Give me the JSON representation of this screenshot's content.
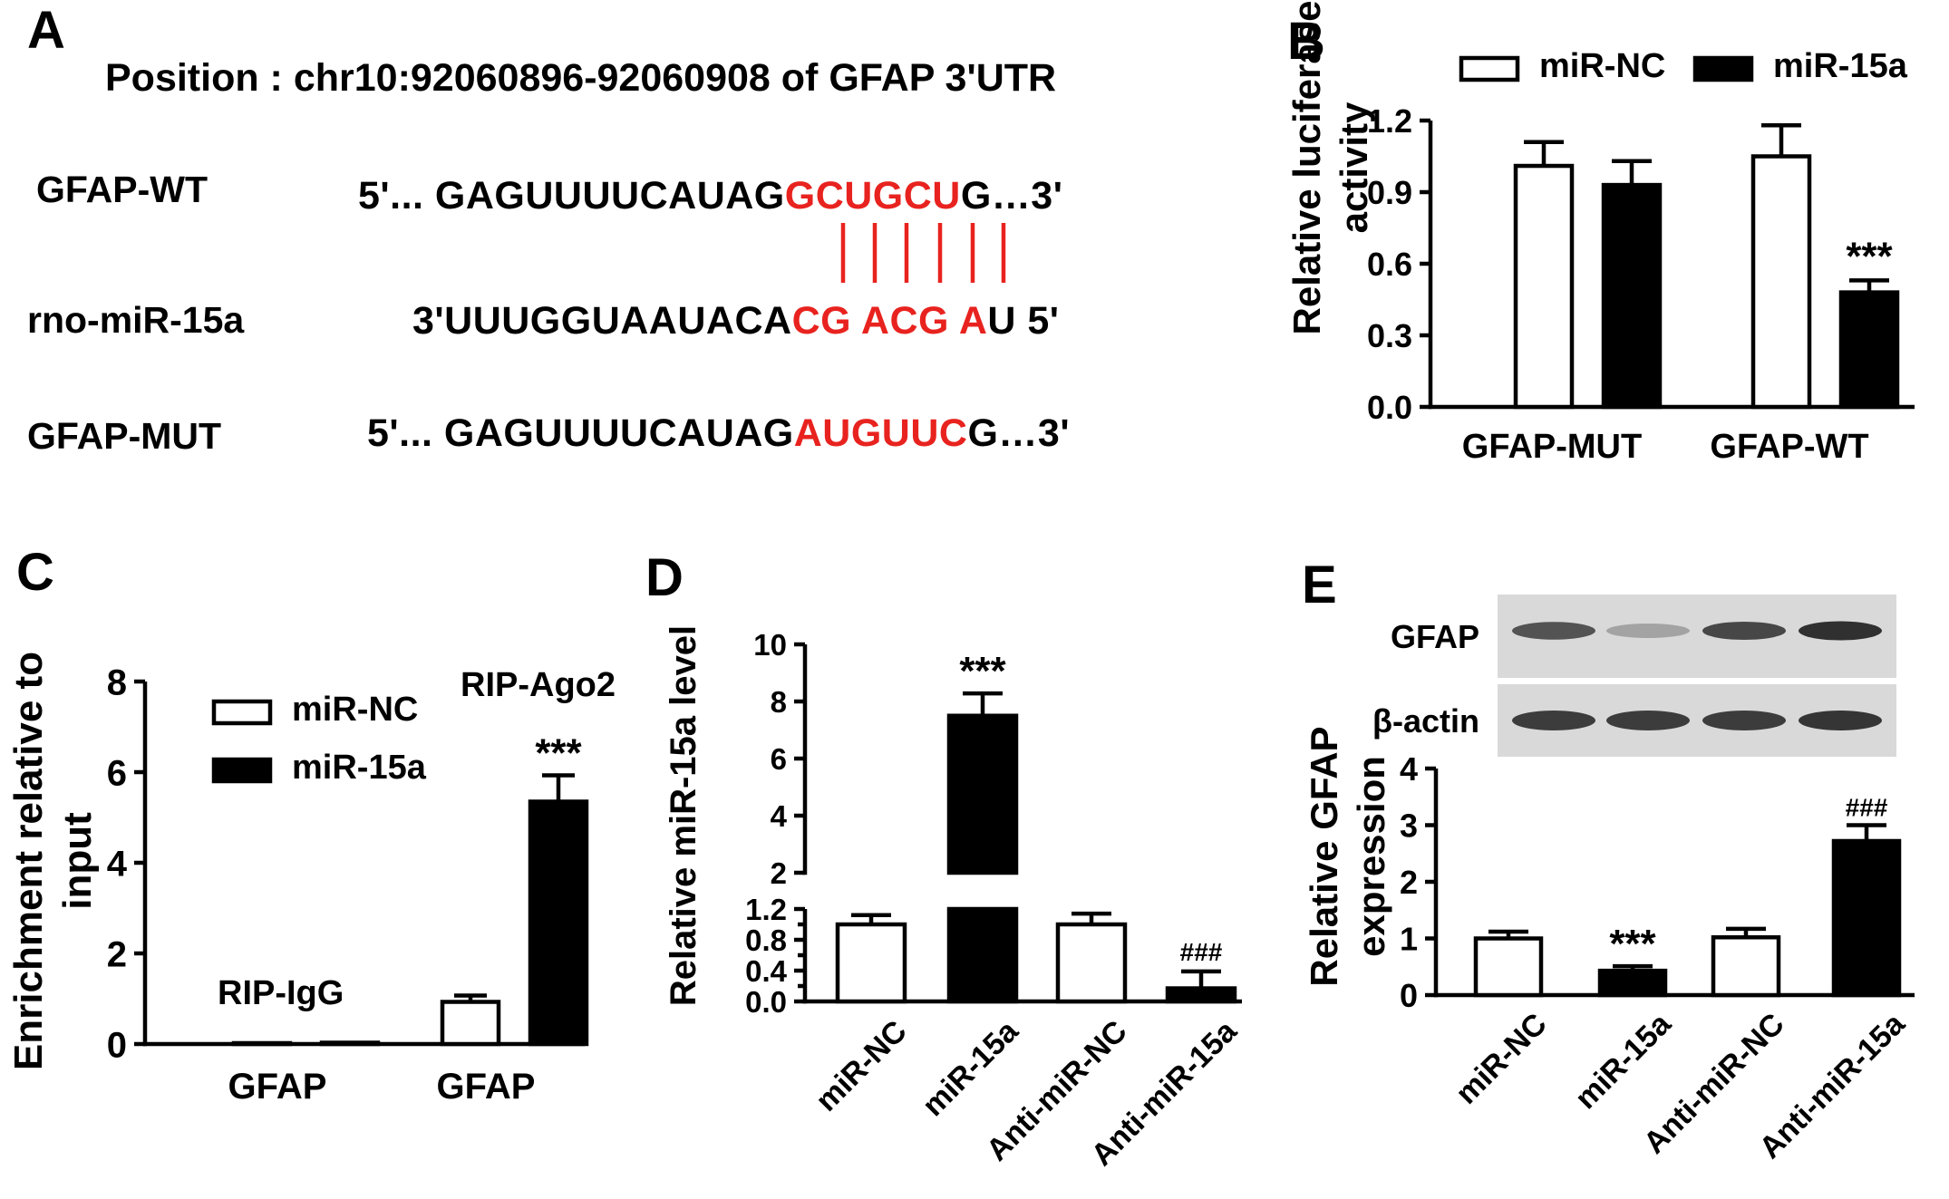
{
  "panelA": {
    "letter": "A",
    "position": "Position : chr10:92060896-92060908 of GFAP 3'UTR",
    "rows": [
      {
        "label": "GFAP-WT",
        "prefix": "5'... GAGUUUUCAUAG",
        "highlight": "GCUGCU",
        "suffix": "G…3'"
      },
      {
        "label": "rno-miR-15a",
        "prefix": "3'UUUGGUAAUACA",
        "highlight": "CG ACG A",
        "suffix": "U 5'"
      },
      {
        "label": "GFAP-MUT",
        "prefix": "5'... GAGUUUUCAUAG",
        "highlight": "AUGUUC",
        "suffix": "G…3'"
      }
    ],
    "pairing_lines": 6
  },
  "colors": {
    "highlight": "#e8231f",
    "fill_open": "#ffffff",
    "fill_solid": "#000000"
  },
  "chart_data": [
    {
      "id": "B",
      "type": "bar",
      "letter": "B",
      "ylabel": "Relative luciferase activity",
      "ylabel_lines": [
        "Relative luciferase",
        "activity"
      ],
      "ylim": [
        0,
        1.2
      ],
      "yticks": [
        "0.0",
        "0.3",
        "0.6",
        "0.9",
        "1.2"
      ],
      "categories": [
        "GFAP-MUT",
        "GFAP-WT"
      ],
      "series": [
        {
          "name": "miR-NC",
          "fill": "open",
          "values": [
            1.01,
            1.05
          ],
          "errors": [
            0.1,
            0.13
          ]
        },
        {
          "name": "miR-15a",
          "fill": "solid",
          "values": [
            0.93,
            0.48
          ],
          "errors": [
            0.1,
            0.05
          ]
        }
      ],
      "annotations": [
        {
          "category": 1,
          "series": 1,
          "text": "***"
        }
      ],
      "legend": "top"
    },
    {
      "id": "C",
      "type": "bar",
      "letter": "C",
      "ylabel": "Enrichment relative to input",
      "ylabel_lines": [
        "Enrichment relative to",
        "input"
      ],
      "ylim": [
        0,
        8
      ],
      "yticks": [
        "0",
        "2",
        "4",
        "6",
        "8"
      ],
      "categories": [
        "GFAP",
        "GFAP"
      ],
      "group_labels": [
        "RIP-IgG",
        "RIP-Ago2"
      ],
      "series": [
        {
          "name": "miR-NC",
          "fill": "open",
          "values": [
            0.02,
            0.93
          ],
          "errors": [
            0.0,
            0.14
          ]
        },
        {
          "name": "miR-15a",
          "fill": "solid",
          "values": [
            0.03,
            5.35
          ],
          "errors": [
            0.0,
            0.58
          ]
        }
      ],
      "annotations": [
        {
          "category": 1,
          "series": 1,
          "text": "***"
        }
      ],
      "legend": "top-left"
    },
    {
      "id": "D",
      "type": "bar",
      "letter": "D",
      "ylabel": "Relative miR-15a level",
      "axis_break": [
        1.2,
        2
      ],
      "ylim_lower": [
        0,
        1.2
      ],
      "ylim_upper": [
        2,
        10
      ],
      "yticks_lower": [
        "0.0",
        "0.4",
        "0.8",
        "1.2"
      ],
      "yticks_lower_extra": [
        "0.2",
        "0.6",
        "1.0"
      ],
      "yticks_upper": [
        "2",
        "4",
        "6",
        "8",
        "10"
      ],
      "categories": [
        "miR-NC",
        "miR-15a",
        "Anti-miR-NC",
        "Anti-miR-15a"
      ],
      "values": [
        1.0,
        7.5,
        1.0,
        0.17
      ],
      "errors": [
        0.12,
        0.78,
        0.14,
        0.22
      ],
      "fills": [
        "open",
        "solid",
        "open",
        "solid"
      ],
      "annotations": [
        {
          "category": 1,
          "text": "***"
        },
        {
          "category": 3,
          "text": "###"
        }
      ]
    },
    {
      "id": "E",
      "type": "bar",
      "letter": "E",
      "ylabel": "Relative GFAP expression",
      "ylabel_lines": [
        "Relative GFAP",
        "expression"
      ],
      "ylim": [
        0,
        4
      ],
      "yticks": [
        "0",
        "1",
        "2",
        "3",
        "4"
      ],
      "categories": [
        "miR-NC",
        "miR-15a",
        "Anti-miR-NC",
        "Anti-miR-15a"
      ],
      "values": [
        1.0,
        0.43,
        1.02,
        2.72
      ],
      "errors": [
        0.12,
        0.08,
        0.15,
        0.28
      ],
      "fills": [
        "open",
        "solid",
        "open",
        "solid"
      ],
      "annotations": [
        {
          "category": 1,
          "text": "***"
        },
        {
          "category": 3,
          "text": "###"
        }
      ],
      "blot_rows": [
        {
          "label": "GFAP",
          "band_intensity": [
            0.75,
            0.4,
            0.8,
            0.9
          ]
        },
        {
          "label": "β-actin",
          "band_intensity": [
            0.85,
            0.85,
            0.85,
            0.88
          ]
        }
      ]
    }
  ]
}
